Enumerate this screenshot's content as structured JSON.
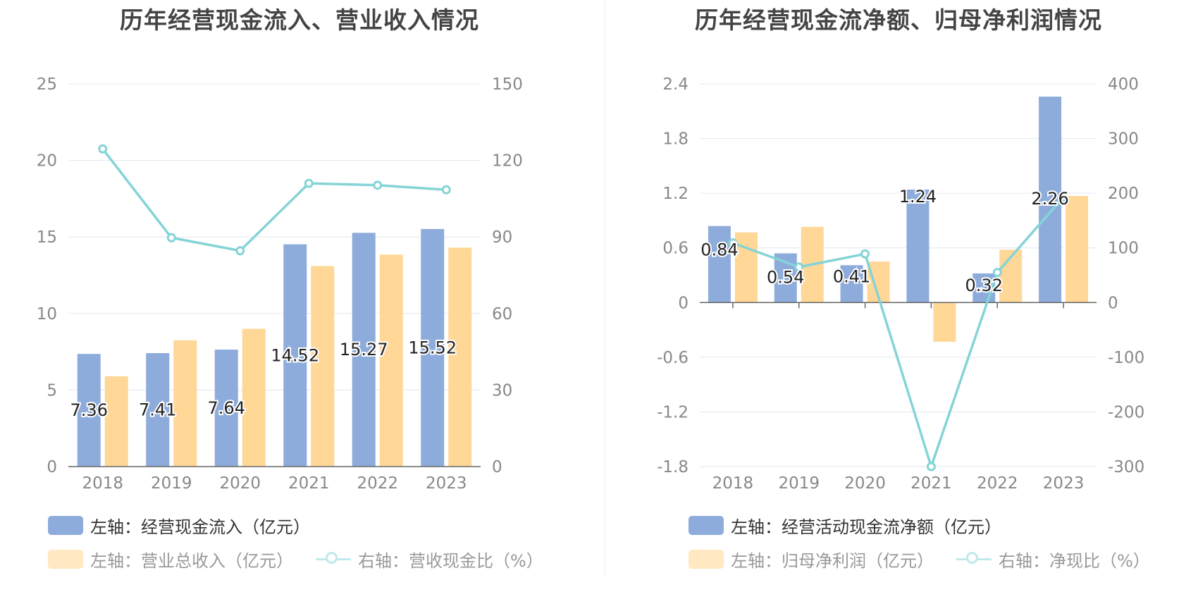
{
  "colors": {
    "bar1": "#8eacdb",
    "bar2": "#ffd797",
    "line": "#84d4d7",
    "axis_text": "#888888",
    "grid": "#e3e6f0",
    "label": "#222222"
  },
  "chart_data": [
    {
      "type": "bar",
      "title": "历年经营现金流入、营业收入情况",
      "categories": [
        "2018",
        "2019",
        "2020",
        "2021",
        "2022",
        "2023"
      ],
      "series": [
        {
          "name": "左轴：经营现金流入（亿元）",
          "axis": "left",
          "values": [
            7.36,
            7.41,
            7.64,
            14.52,
            15.27,
            15.52
          ],
          "labels": [
            "7.36",
            "7.41",
            "7.64",
            "14.52",
            "15.27",
            "15.52"
          ]
        },
        {
          "name": "左轴：营业总收入（亿元）",
          "axis": "left",
          "values": [
            5.9,
            8.25,
            9.0,
            13.1,
            13.85,
            14.3
          ]
        },
        {
          "name": "右轴：营收现金比（%）",
          "axis": "right",
          "type": "line",
          "values": [
            124.5,
            89.7,
            84.6,
            111.0,
            110.3,
            108.5
          ]
        }
      ],
      "y_left": {
        "min": 0,
        "max": 25,
        "ticks": [
          "0",
          "5",
          "10",
          "15",
          "20",
          "25"
        ]
      },
      "y_right": {
        "min": 0,
        "max": 150,
        "ticks": [
          "0",
          "30",
          "60",
          "90",
          "120",
          "150"
        ]
      },
      "grid": true,
      "legend_position": "bottom"
    },
    {
      "type": "bar",
      "title": "历年经营现金流净额、归母净利润情况",
      "categories": [
        "2018",
        "2019",
        "2020",
        "2021",
        "2022",
        "2023"
      ],
      "series": [
        {
          "name": "左轴：经营活动现金流净额（亿元）",
          "axis": "left",
          "values": [
            0.84,
            0.54,
            0.41,
            1.24,
            0.32,
            2.26
          ],
          "labels": [
            "0.84",
            "0.54",
            "0.41",
            "1.24",
            "0.32",
            "2.26"
          ]
        },
        {
          "name": "左轴：归母净利润（亿元）",
          "axis": "left",
          "values": [
            0.77,
            0.83,
            0.45,
            -0.43,
            0.58,
            1.17
          ]
        },
        {
          "name": "右轴：净现比（%）",
          "axis": "right",
          "type": "line",
          "values": [
            109,
            65,
            89,
            -300,
            55,
            193
          ]
        }
      ],
      "y_left": {
        "min": -1.8,
        "max": 2.4,
        "ticks": [
          "-1.8",
          "-1.2",
          "-0.6",
          "0",
          "0.6",
          "1.2",
          "1.8",
          "2.4"
        ]
      },
      "y_right": {
        "min": -300,
        "max": 400,
        "ticks": [
          "-300",
          "-200",
          "-100",
          "0",
          "100",
          "200",
          "300",
          "400"
        ]
      },
      "grid": true,
      "legend_position": "bottom"
    }
  ]
}
